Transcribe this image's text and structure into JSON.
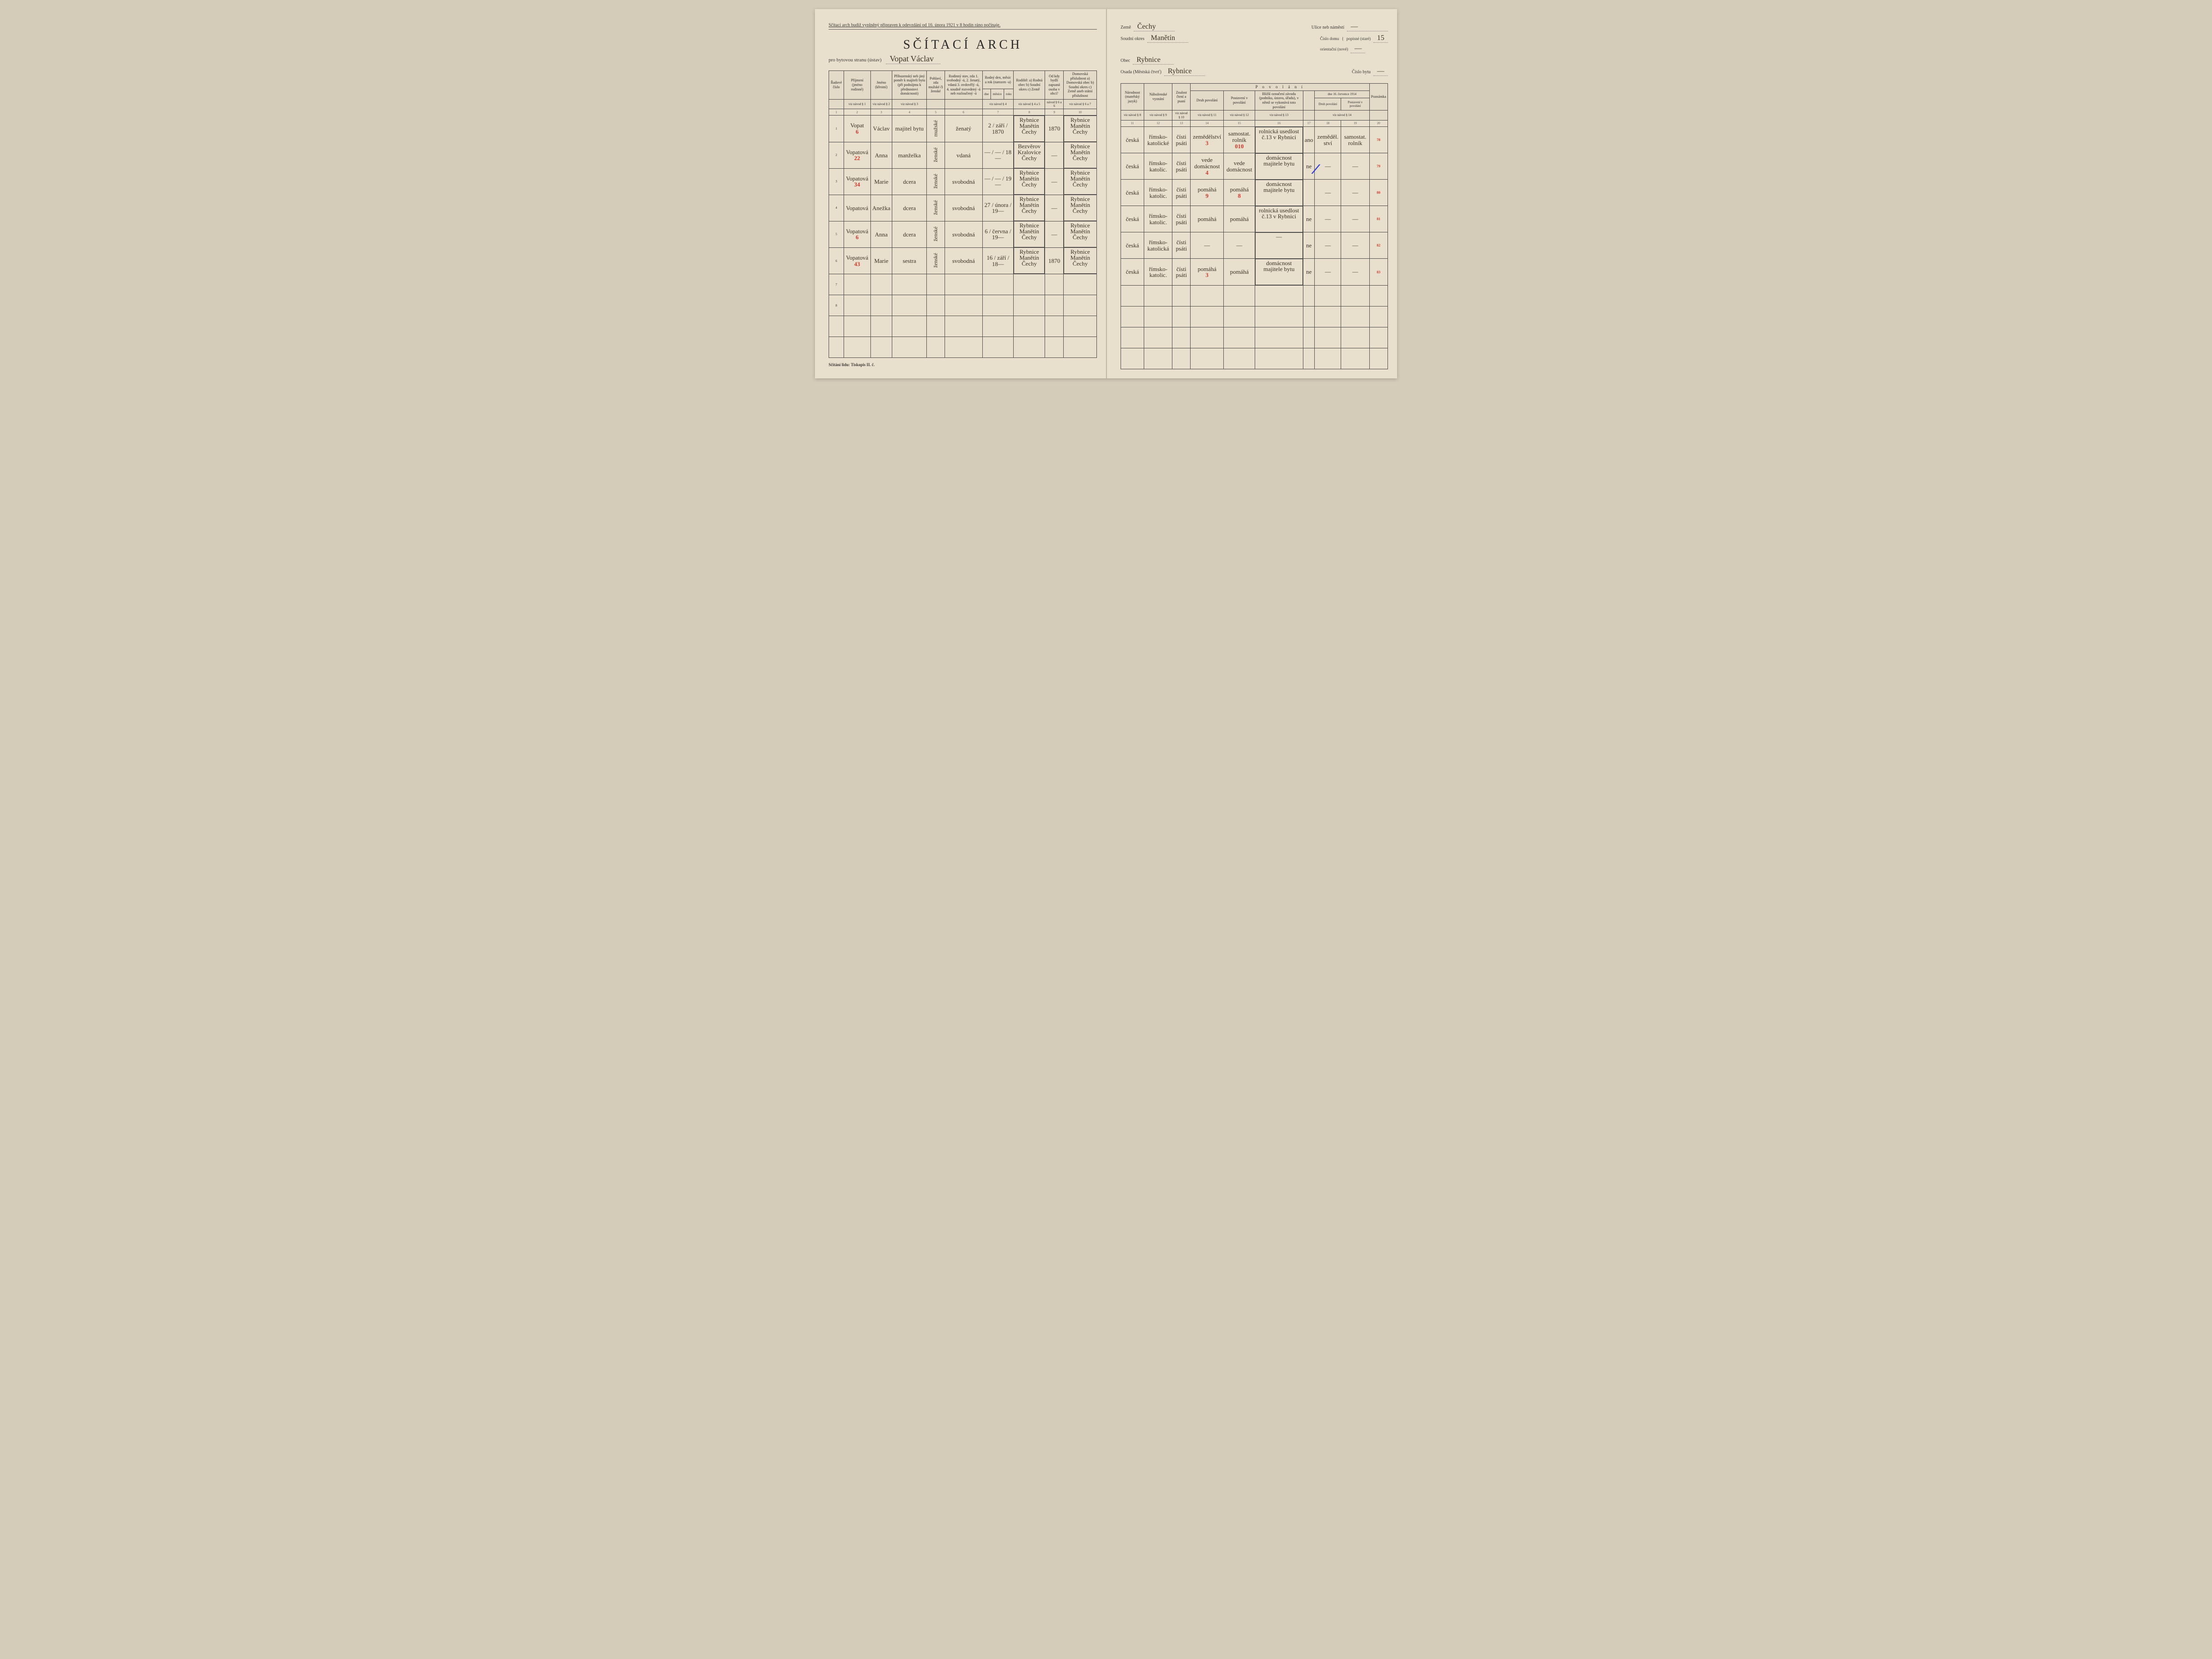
{
  "topnote": "Sčítací arch budiž vyplněný připraven k odevzdání od 16. února 1921 v 8 hodin ráno počínaje.",
  "title": "SČÍTACÍ ARCH",
  "subtitle_prefix": "pro bytovou stranu (ústav)",
  "household_head": "Vopat Václav",
  "footer": "Sčítání lidu: Tiskopis II. č.",
  "hdr": {
    "zeme_l": "Země",
    "zeme": "Čechy",
    "okres_l": "Soudní okres",
    "okres": "Manětín",
    "obec_l": "Obec",
    "obec": "Rybnice",
    "osada_l": "Osada (Městská čtvrť)",
    "osada": "Rybnice",
    "ulice_l": "Ulice neb náměstí",
    "ulice": "—",
    "cislodomu_l": "Číslo domu",
    "popisne_l": "popisné (staré)",
    "popisne": "15",
    "orient_l": "orientační (nové)",
    "orient": "—",
    "bytu_l": "Číslo bytu",
    "bytu": "—"
  },
  "cols_left": {
    "c1": "Řadové číslo",
    "c2": "Příjmení (jméno rodinné)",
    "c3": "Jméno (křestní)",
    "c4": "Příbuzenský neb jiný poměr k majiteli bytu (při podnájmu k přednostovi domácnosti)",
    "c5": "Pohlaví, zda mužské či ženské",
    "c6": "Rodinný stav, zda 1. svobodný -á, 2. ženatý, vdaná 3. ovdovělý -á, 4. soudně rozvedený -á neb rozloučený -á",
    "c7": "Rodný den, měsíc a rok (narozen -a)",
    "c7a": "dne",
    "c7b": "měsíce",
    "c7c": "roku",
    "c8": "Rodiště: a) Rodná obec b) Soudní okres c) Země",
    "c9": "Od kdy bydlí zapsaná osoba v obci?",
    "c10": "Domovská příslušnost a) Domovská obec b) Soudní okres c) Země aneb státní příslušnost",
    "navod": "viz návod §"
  },
  "cols_right": {
    "c11": "Národnost (mateřský jazyk)",
    "c12": "Náboženské vyznání",
    "c13": "Znalost čtení a psaní",
    "povolani": "P o v o l á n í",
    "c14": "Druh povolání",
    "c15": "Postavení v povolání",
    "c16": "Bližší označení závodu (podniku, ústavu, úřadu), v němž se vykonává toto povolání",
    "c17": "",
    "c18": "Druh povolání",
    "c19": "Postavení v povolání",
    "c1819": "dne 16. července 1914",
    "c20": "Poznámka"
  },
  "rows": [
    {
      "n": "1",
      "surname": "Vopat",
      "name": "Václav",
      "rel": "majitel bytu",
      "sex": "mužské",
      "stav": "ženatý",
      "dmy": "2 / září / 1870",
      "birth": "Rybnice / Manětín / Čechy",
      "since": "1870",
      "domicile": "Rybnice / Manětín / Čechy",
      "nat": "česká",
      "rel2": "římsko-katolické",
      "lit": "čísti psáti",
      "occ": "zemědělství",
      "pos": "samostat. rolník",
      "firm": "rolnická usedlost č.13 v Rybnici",
      "c17": "ano",
      "o14": "zeměděl. ství",
      "o14p": "samostat. rolník",
      "idx": "78",
      "red_over": "6 3   010  11"
    },
    {
      "n": "2",
      "surname": "Vopatová",
      "name": "Anna",
      "rel": "manželka",
      "sex": "ženské",
      "stav": "vdaná",
      "dmy": "— / — / 18—",
      "birth": "Bezvěrov / Kralovice / Čechy",
      "since": "—",
      "domicile": "Rybnice / Manětín / Čechy",
      "nat": "česká",
      "rel2": "římsko-katolic.",
      "lit": "čísti psáti",
      "occ": "vede domácnost",
      "pos": "vede domácnost",
      "firm": "domácnost majitele bytu",
      "c17": "ne",
      "o14": "—",
      "o14p": "—",
      "idx": "79",
      "red_over": "22   4"
    },
    {
      "n": "3",
      "surname": "Vopatová",
      "name": "Marie",
      "rel": "dcera",
      "sex": "ženské",
      "stav": "svobodná",
      "dmy": "— / — / 19—",
      "birth": "Rybnice / Manětín / Čechy",
      "since": "—",
      "domicile": "Rybnice / Manětín / Čechy",
      "nat": "česká",
      "rel2": "římsko-katolic.",
      "lit": "čísti psáti",
      "occ": "pomáhá",
      "pos": "pomáhá",
      "firm": "domácnost majitele bytu",
      "c17": "",
      "o14": "—",
      "o14p": "—",
      "idx": "80",
      "red_over": "34    9   8"
    },
    {
      "n": "4",
      "surname": "Vopatová",
      "name": "Anežka",
      "rel": "dcera",
      "sex": "ženské",
      "stav": "svobodná",
      "dmy": "27 / února / 19—",
      "birth": "Rybnice / Manětín / Čechy",
      "since": "—",
      "domicile": "Rybnice / Manětín / Čechy",
      "nat": "česká",
      "rel2": "římsko-katolic.",
      "lit": "čísti psáti",
      "occ": "pomáhá",
      "pos": "pomáhá",
      "firm": "rolnická usedlost č.13 v Rybnici",
      "c17": "ne",
      "o14": "—",
      "o14p": "—",
      "idx": "81",
      "red_over": ""
    },
    {
      "n": "5",
      "surname": "Vopatová",
      "name": "Anna",
      "rel": "dcera",
      "sex": "ženské",
      "stav": "svobodná",
      "dmy": "6 / června / 19—",
      "birth": "Rybnice / Manětín / Čechy",
      "since": "—",
      "domicile": "Rybnice / Manětín / Čechy",
      "nat": "česká",
      "rel2": "římsko-katolická",
      "lit": "čísti psáti",
      "occ": "—",
      "pos": "—",
      "firm": "—",
      "c17": "ne",
      "o14": "—",
      "o14p": "—",
      "idx": "82",
      "red_over": "6"
    },
    {
      "n": "6",
      "surname": "Vopatová",
      "name": "Marie",
      "rel": "sestra",
      "sex": "ženské",
      "stav": "svobodná",
      "dmy": "16 / září / 18—",
      "birth": "Rybnice / Manětín / Čechy",
      "since": "1870",
      "domicile": "Rybnice / Manětín / Čechy",
      "nat": "česká",
      "rel2": "římsko-katolic.",
      "lit": "čísti psáti",
      "occ": "pomáhá",
      "pos": "pomáhá",
      "firm": "domácnost majitele bytu",
      "c17": "ne",
      "o14": "—",
      "o14p": "—",
      "idx": "83",
      "red_over": "43   3"
    }
  ],
  "colnums_left": [
    "1",
    "2",
    "3",
    "4",
    "5",
    "6",
    "7",
    "",
    "",
    "8",
    "9",
    "10"
  ],
  "colnums_right": [
    "11",
    "12",
    "13",
    "14",
    "15",
    "16",
    "17",
    "18",
    "19",
    "20"
  ],
  "colors": {
    "paper": "#e8e0cc",
    "ink": "#3a3226",
    "red": "#d43a2a",
    "blue": "#2a3ad4",
    "rule": "#4a4a4a"
  }
}
